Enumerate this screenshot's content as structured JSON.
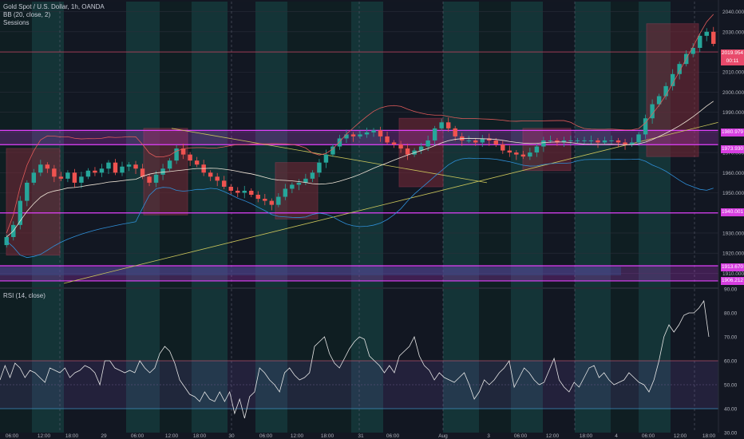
{
  "legend": {
    "symbol": "Gold Spot / U.S. Dollar, 1h, OANDA",
    "bollinger": "BB (20, close, 2)",
    "sessions": "Sessions",
    "rsi": "RSI (14, close)"
  },
  "price_axis": {
    "ticks": [
      "2040.000",
      "2030.000",
      "2020.000",
      "2010.000",
      "2000.000",
      "1990.000",
      "1980.000",
      "1970.000",
      "1960.000",
      "1950.000",
      "1940.000",
      "1930.000",
      "1920.000",
      "1910.000"
    ],
    "ylim": [
      1903,
      2045
    ]
  },
  "rsi_axis": {
    "ticks": [
      "90.00",
      "80.00",
      "70.00",
      "60.00",
      "50.00",
      "40.00",
      "30.00"
    ],
    "ylim": [
      30,
      90
    ],
    "upper_band": 60,
    "lower_band": 40
  },
  "time_axis": {
    "labels": [
      "06:00",
      "12:00",
      "18:00",
      "29",
      "06:00",
      "12:00",
      "18:00",
      "30",
      "06:00",
      "12:00",
      "18:00",
      "31",
      "06:00",
      "Aug",
      "3",
      "06:00",
      "12:00",
      "18:00",
      "4",
      "06:00",
      "12:00",
      "18:00"
    ]
  },
  "level_tags": [
    {
      "text": "2019.954",
      "kind": "level"
    },
    {
      "text": "00:11",
      "kind": "timer"
    },
    {
      "text": "1980.979",
      "kind": "zone"
    },
    {
      "text": "1973.930",
      "kind": "zone"
    },
    {
      "text": "1940.001",
      "kind": "zone"
    },
    {
      "text": "1913.670",
      "kind": "zone"
    },
    {
      "text": "1906.212",
      "kind": "zone"
    }
  ],
  "colors": {
    "background": "#131722",
    "up_candle": "#26a69a",
    "down_candle": "#ef5350",
    "zone": "#e040fb",
    "session_teal": "#1e4a4a",
    "trendline": "#c9c45a",
    "bb_basis": "#f0e6d8",
    "bb_upper": "#e05a5a",
    "bb_lower": "#2f8fd8",
    "rsi_line": "#e6e6e6",
    "rsi_band": "#7e57c2"
  },
  "chart_data": {
    "type": "candlestick",
    "symbol": "Gold Spot / U.S. Dollar",
    "timeframe": "1h",
    "close_path": [
      1928,
      1934,
      1946,
      1955,
      1960,
      1964,
      1962,
      1958,
      1957,
      1960,
      1955,
      1958,
      1961,
      1960,
      1962,
      1965,
      1960,
      1963,
      1964,
      1962,
      1958,
      1955,
      1959,
      1962,
      1966,
      1972,
      1969,
      1966,
      1964,
      1960,
      1958,
      1956,
      1953,
      1951,
      1950,
      1951,
      1949,
      1947,
      1946,
      1944,
      1948,
      1952,
      1954,
      1955,
      1957,
      1960,
      1965,
      1969,
      1973,
      1977,
      1979,
      1978,
      1979,
      1980,
      1981,
      1978,
      1975,
      1974,
      1972,
      1969,
      1971,
      1973,
      1976,
      1982,
      1985,
      1982,
      1978,
      1976,
      1976,
      1975,
      1977,
      1976,
      1974,
      1971,
      1970,
      1969,
      1968,
      1970,
      1973,
      1976,
      1976,
      1975,
      1976,
      1976,
      1976,
      1976,
      1976,
      1975,
      1976,
      1976,
      1975,
      1974,
      1975,
      1979,
      1987,
      1994,
      1998,
      2003,
      2009,
      2014,
      2019,
      2022,
      2028,
      2030,
      2024
    ],
    "rsi": [
      52,
      58,
      53,
      59,
      57,
      53,
      56,
      55,
      53,
      51,
      57,
      56,
      55,
      57,
      53,
      55,
      56,
      58,
      57,
      55,
      50,
      60,
      60,
      57,
      56,
      55,
      56,
      55,
      60,
      57,
      55,
      57,
      63,
      66,
      64,
      59,
      52,
      49,
      46,
      45,
      43,
      47,
      44,
      43,
      47,
      43,
      47,
      38,
      44,
      36,
      45,
      47,
      57,
      55,
      52,
      50,
      47,
      55,
      57,
      54,
      52,
      53,
      55,
      66,
      68,
      70,
      63,
      59,
      57,
      61,
      65,
      68,
      70,
      69,
      62,
      60,
      58,
      55,
      58,
      55,
      62,
      64,
      66,
      70,
      62,
      58,
      56,
      52,
      55,
      53,
      52,
      51,
      53,
      55,
      50,
      44,
      47,
      52,
      50,
      52,
      55,
      57,
      60,
      49,
      53,
      57,
      55,
      52,
      50,
      51,
      56,
      61,
      52,
      49,
      47,
      51,
      49,
      53,
      57,
      58,
      53,
      55,
      52,
      50,
      51,
      52,
      55,
      53,
      51,
      50,
      47,
      52,
      60,
      70,
      75,
      72,
      75,
      79,
      80,
      80,
      82,
      85,
      70
    ]
  }
}
